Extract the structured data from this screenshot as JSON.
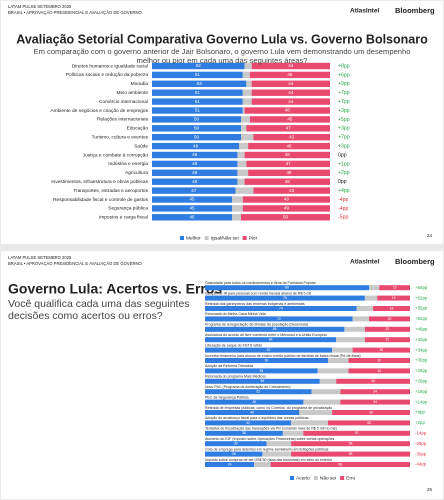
{
  "chart_data": [
    {
      "type": "bar",
      "orientation": "horizontal",
      "stacked": true,
      "header": [
        "LATAM PULSE SETEMBRO 2025",
        "BRASIL • APROVAÇÃO PRESIDENCIAL E AVALIAÇÃO DE GOVERNO"
      ],
      "brands": [
        "AtlasIntel",
        "Bloomberg"
      ],
      "title": "Avaliação Setorial Comparativa Governo Lula vs. Governo Bolsonaro",
      "subtitle": "Em comparação com o governo anterior de Jair Bolsonaro, o governo Lula vem demonstrando um desempenho melhor ou pior em cada uma das seguintes áreas?",
      "page": "24",
      "xlim": [
        0,
        100
      ],
      "categories": [
        "Direitos humanos e igualdade racial",
        "Políticas sociais e redução da pobreza",
        "Moradia",
        "Meio ambiente",
        "Comércio internacional",
        "Ambiente de negócios e criação de empregos",
        "Relações internacionais",
        "Educação",
        "Turismo, cultura e eventos",
        "Saúde",
        "Justiça e combate à corrupção",
        "Indústria e energia",
        "Agricultura",
        "Investimentos, infraestrutura e obras públicas",
        "Transportes, estradas e aeroportos",
        "Responsabilidade fiscal e controle de gastos",
        "Segurança pública",
        "Impostos e carga fiscal"
      ],
      "series": [
        {
          "name": "Melhor",
          "color": "#2f7de1",
          "show_labels": true,
          "values": [
            52,
            51,
            53,
            51,
            51,
            51,
            50,
            50,
            50,
            49,
            48,
            48,
            48,
            48,
            47,
            45,
            45,
            45
          ]
        },
        {
          "name": "Igual/Não sei",
          "color": "#c9c9c9",
          "show_labels": false,
          "values": [
            4,
            4,
            3,
            5,
            5,
            1,
            5,
            3,
            7,
            5,
            4,
            5,
            6,
            4,
            10,
            6,
            6,
            5
          ]
        },
        {
          "name": "Pior",
          "color": "#e9496f",
          "show_labels": true,
          "values": [
            44,
            45,
            44,
            44,
            44,
            48,
            45,
            47,
            43,
            46,
            48,
            47,
            46,
            48,
            43,
            49,
            49,
            50
          ]
        }
      ],
      "net_labels": [
        "+8pp",
        "+6pp",
        "+9pp",
        "+7pp",
        "+7pp",
        "+3pp",
        "+5pp",
        "+3pp",
        "+7pp",
        "+3pp",
        "0pp",
        "+1pp",
        "+2pp",
        "0pp",
        "+4pp",
        "-4pp",
        "-4pp",
        "-5pp"
      ]
    },
    {
      "type": "bar",
      "orientation": "horizontal",
      "stacked": true,
      "header": [
        "LATAM PULSE SETEMBRO 2025",
        "BRASIL • APROVAÇÃO PRESIDENCIAL E AVALIAÇÃO DE GOVERNO"
      ],
      "brands": [
        "AtlasIntel",
        "Bloomberg"
      ],
      "title": "Governo Lula: Acertos vs. Erros",
      "subtitle": "Você qualifica cada uma das seguintes decisões como acertos ou erros?",
      "page": "25",
      "xlim": [
        0,
        100
      ],
      "categories": [
        "Gratuidade para todos os medicamentos e itens da Farmácia Popular",
        "Isenção de IR para pessoas com renda mensal abaixo de R$ 5 mil",
        "Retirada dos garimpeiros das reservas indígenas e ambientais",
        "Retomada do Minha Casa Minha Vida",
        "Programa de renegociação de dívidas da população (Desenrola)",
        "Assinatura do acordo de livre comércio entre o Mercosul e a União Europeia",
        "Liberação de saque do FGTS retido",
        "Incentivo financeiro para alunos de ensino médio público de famílias de baixa renda (Pé-de-Meia)",
        "Adoção da Reforma Tributária",
        "Retomada do programa Mais Médicos",
        "Novo PAC (Programa de Aceleração do Crescimento)",
        "PEC da Segurança Pública",
        "Retirada de empresas públicas, como os Correios, do programa de privatização",
        "Adoção do arcabouço fiscal para o equilíbrio das contas públicas",
        "Tentativa de fiscalização das transações via Pix somando mais de R$ 5 mil no mês",
        "Aumento do IOF (Imposto sobre Operações Financeiras) sobre certas operações",
        "Cota de emprego para detentos em regime semiaberto em licitações públicas",
        "Imposto sobre compras de até US$ 50 (taxa das blusinhas) em sites do exterior"
      ],
      "series": [
        {
          "name": "Acerto",
          "color": "#2f7de1",
          "show_labels": true,
          "values": [
            80,
            78,
            74,
            72,
            68,
            64,
            62,
            60,
            55,
            56,
            52,
            48,
            46,
            42,
            38,
            30,
            28,
            24
          ]
        },
        {
          "name": "Não sei",
          "color": "#c9c9c9",
          "show_labels": false,
          "values": [
            5,
            6,
            8,
            8,
            10,
            14,
            10,
            10,
            15,
            8,
            14,
            18,
            16,
            18,
            10,
            12,
            14,
            8
          ]
        },
        {
          "name": "Erro",
          "color": "#e9496f",
          "show_labels": true,
          "values": [
            15,
            16,
            18,
            20,
            22,
            22,
            28,
            30,
            30,
            36,
            34,
            34,
            38,
            40,
            52,
            58,
            58,
            68
          ]
        }
      ],
      "net_labels": [
        "+65pp",
        "+62pp",
        "+56pp",
        "+52pp",
        "+46pp",
        "+42pp",
        "+34pp",
        "+30pp",
        "+25pp",
        "+20pp",
        "+18pp",
        "+14pp",
        "+8pp",
        "+2pp",
        "-14pp",
        "-28pp",
        "-30pp",
        "-44pp"
      ]
    }
  ]
}
